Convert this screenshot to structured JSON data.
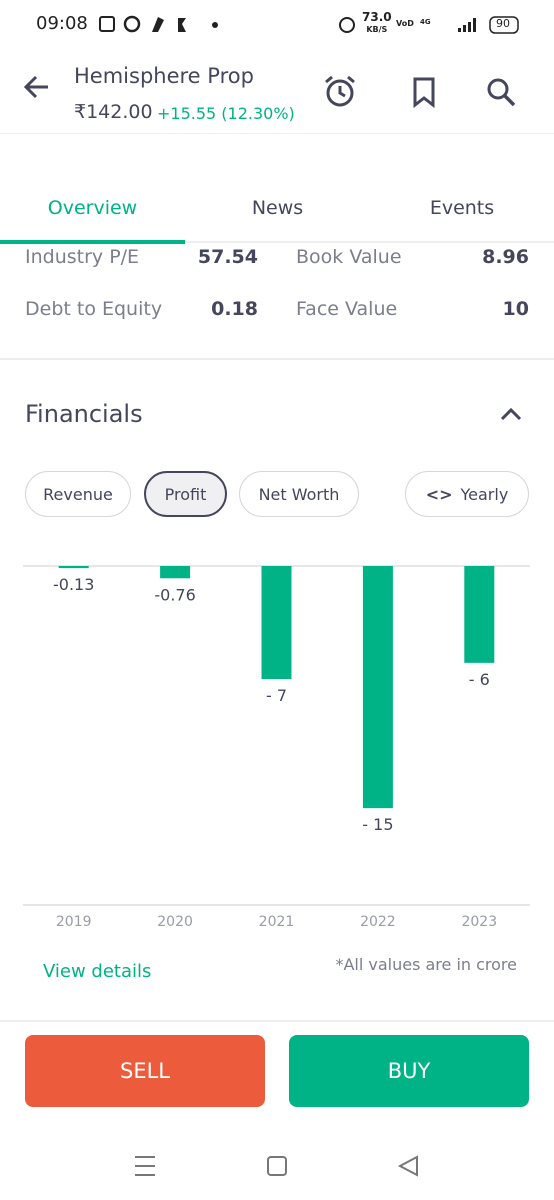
{
  "status_bar": {
    "time": "09:08",
    "speed": "73.0",
    "speed_unit": "KB/S",
    "battery": "90"
  },
  "header": {
    "title": "Hemisphere Prop",
    "price": "₹142.00",
    "change": "+15.55 (12.30%)"
  },
  "tabs": [
    "Overview",
    "News",
    "Events"
  ],
  "stats": [
    [
      {
        "label": "Industry P/E",
        "value": "57.54"
      },
      {
        "label": "Book Value",
        "value": "8.96"
      }
    ],
    [
      {
        "label": "Debt to Equity",
        "value": "0.18"
      },
      {
        "label": "Face Value",
        "value": "10"
      }
    ]
  ],
  "financials": {
    "title": "Financials",
    "chips": [
      "Revenue",
      "Profit",
      "Net Worth",
      "Yearly"
    ],
    "view_details": "View details",
    "note": "*All values are in crore"
  },
  "actions": {
    "sell": "SELL",
    "buy": "BUY"
  },
  "chart_data": {
    "type": "bar",
    "categories": [
      "2019",
      "2020",
      "2021",
      "2022",
      "2023"
    ],
    "values": [
      -0.13,
      -0.76,
      -7,
      -15,
      -6
    ],
    "value_labels": [
      "-0.13",
      "-0.76",
      "- 7",
      "- 15",
      "- 6"
    ],
    "color": "#00b386",
    "ylim": [
      -21,
      0
    ]
  }
}
